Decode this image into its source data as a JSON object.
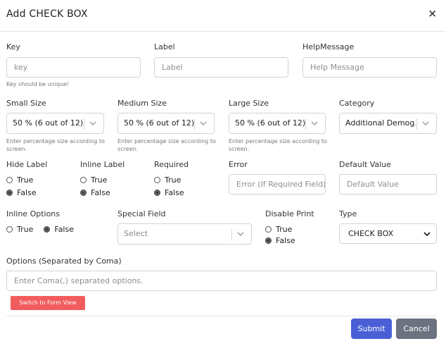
{
  "dialog": {
    "title": "Add CHECK BOX",
    "close_glyph": "×"
  },
  "fields": {
    "key": {
      "label": "Key",
      "placeholder": "key",
      "help": "Key should be unique!"
    },
    "label": {
      "label": "Label",
      "placeholder": "Label"
    },
    "help_message": {
      "label": "HelpMessage",
      "placeholder": "Help Message"
    }
  },
  "sizes": {
    "small": {
      "label": "Small Size",
      "value": "50 % (6 out of 12)",
      "help": "Enter percentage size according to screen."
    },
    "medium": {
      "label": "Medium Size",
      "value": "50 % (6 out of 12)",
      "help": "Enter percentage size according to screen."
    },
    "large": {
      "label": "Large Size",
      "value": "50 % (6 out of 12)",
      "help": "Enter percentage size according to screen."
    },
    "category": {
      "label": "Category",
      "value": "Additional Demog..."
    }
  },
  "toggles": {
    "hide_label": {
      "label": "Hide Label",
      "true": "True",
      "false": "False",
      "selected": "False"
    },
    "inline_label": {
      "label": "Inline Label",
      "true": "True",
      "false": "False",
      "selected": "False"
    },
    "required": {
      "label": "Required",
      "true": "True",
      "false": "False",
      "selected": "False"
    },
    "error": {
      "label": "Error",
      "placeholder": "Error (If Required Field)"
    },
    "default_value": {
      "label": "Default Value",
      "placeholder": "Default Value"
    }
  },
  "row4": {
    "inline_options": {
      "label": "Inline Options",
      "true": "True",
      "false": "False",
      "selected": "False"
    },
    "special_field": {
      "label": "Special Field",
      "placeholder": "Select"
    },
    "disable_print": {
      "label": "Disable Print",
      "true": "True",
      "false": "False",
      "selected": "False"
    },
    "type": {
      "label": "Type",
      "value": "CHECK BOX"
    }
  },
  "options": {
    "label": "Options (Separated by Coma)",
    "placeholder": "Enter Coma(,) separated options."
  },
  "actions": {
    "switch_view": "Switch to Form View",
    "submit": "Submit",
    "cancel": "Cancel"
  },
  "colors": {
    "submit": "#4a5fd6",
    "cancel": "#6c7380",
    "switch": "#f25c5c"
  },
  "icons": {
    "close": "close-icon",
    "select_chevron": "chevron-down-icon"
  }
}
